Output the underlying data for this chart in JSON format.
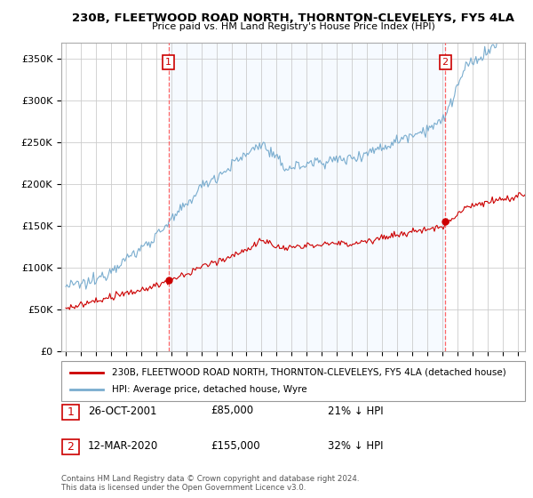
{
  "title": "230B, FLEETWOOD ROAD NORTH, THORNTON-CLEVELEYS, FY5 4LA",
  "subtitle": "Price paid vs. HM Land Registry's House Price Index (HPI)",
  "ylabel_ticks": [
    "£0",
    "£50K",
    "£100K",
    "£150K",
    "£200K",
    "£250K",
    "£300K",
    "£350K"
  ],
  "ytick_values": [
    0,
    50000,
    100000,
    150000,
    200000,
    250000,
    300000,
    350000
  ],
  "ylim": [
    0,
    370000
  ],
  "xlim_start": 1994.7,
  "xlim_end": 2025.5,
  "sale1_x": 2001.82,
  "sale1_y": 85000,
  "sale1_label": "1",
  "sale1_date": "26-OCT-2001",
  "sale1_price": "£85,000",
  "sale1_hpi": "21% ↓ HPI",
  "sale2_x": 2020.2,
  "sale2_y": 155000,
  "sale2_label": "2",
  "sale2_date": "12-MAR-2020",
  "sale2_price": "£155,000",
  "sale2_hpi": "32% ↓ HPI",
  "legend_line1": "230B, FLEETWOOD ROAD NORTH, THORNTON-CLEVELEYS, FY5 4LA (detached house)",
  "legend_line2": "HPI: Average price, detached house, Wyre",
  "footer": "Contains HM Land Registry data © Crown copyright and database right 2024.\nThis data is licensed under the Open Government Licence v3.0.",
  "sale_color": "#cc0000",
  "hpi_color": "#7aadcf",
  "shade_color": "#ddeeff",
  "vline_color": "#ff6666",
  "background_color": "#ffffff",
  "grid_color": "#cccccc"
}
